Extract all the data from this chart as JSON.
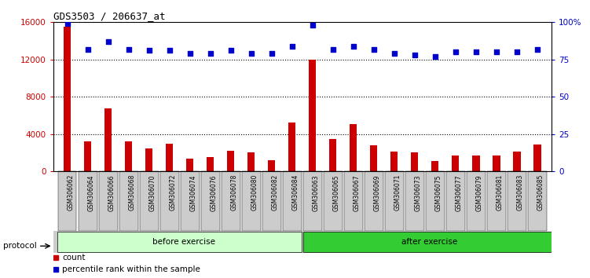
{
  "title": "GDS3503 / 206637_at",
  "categories": [
    "GSM306062",
    "GSM306064",
    "GSM306066",
    "GSM306068",
    "GSM306070",
    "GSM306072",
    "GSM306074",
    "GSM306076",
    "GSM306078",
    "GSM306080",
    "GSM306082",
    "GSM306084",
    "GSM306063",
    "GSM306065",
    "GSM306067",
    "GSM306069",
    "GSM306071",
    "GSM306073",
    "GSM306075",
    "GSM306077",
    "GSM306079",
    "GSM306081",
    "GSM306083",
    "GSM306085"
  ],
  "count": [
    15500,
    3200,
    6800,
    3200,
    2500,
    3000,
    1400,
    1500,
    2200,
    2000,
    1200,
    5200,
    12000,
    3500,
    5100,
    2800,
    2100,
    2000,
    1100,
    1700,
    1700,
    1700,
    2100,
    2900
  ],
  "percentile": [
    99,
    82,
    87,
    82,
    81,
    81,
    79,
    79,
    81,
    79,
    79,
    84,
    98,
    82,
    84,
    82,
    79,
    78,
    77,
    80,
    80,
    80,
    80,
    82
  ],
  "bar_color": "#cc0000",
  "dot_color": "#0000cc",
  "ylim_left": [
    0,
    16000
  ],
  "ylim_right": [
    0,
    100
  ],
  "yticks_left": [
    0,
    4000,
    8000,
    12000,
    16000
  ],
  "yticks_right": [
    0,
    25,
    50,
    75,
    100
  ],
  "yticklabels_right": [
    "0",
    "25",
    "50",
    "75",
    "100%"
  ],
  "before_exercise_count": 12,
  "after_exercise_count": 12,
  "before_label": "before exercise",
  "after_label": "after exercise",
  "protocol_label": "protocol",
  "before_color": "#ccffcc",
  "after_color": "#33cc33",
  "protocol_bg": "#cccccc",
  "bg_color": "#ffffff",
  "tick_cell_color": "#cccccc",
  "legend_count_label": "count",
  "legend_percentile_label": "percentile rank within the sample"
}
